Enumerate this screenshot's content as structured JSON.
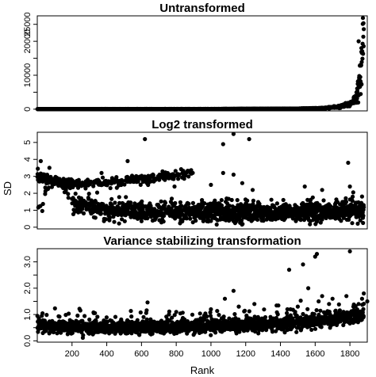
{
  "chart_data": [
    {
      "type": "scatter",
      "title": "Untransformed",
      "xlim": [
        0,
        1900
      ],
      "ylim": [
        -500,
        27500
      ],
      "yticks": [
        0,
        5000,
        10000,
        15000,
        20000,
        25000
      ],
      "ytick_labels": [
        "0",
        "",
        "10000",
        "",
        "20000",
        "25000"
      ],
      "ylabel": "",
      "xlabel": "",
      "n_points": 1880,
      "trend": [
        [
          0,
          40
        ],
        [
          1000,
          60
        ],
        [
          1500,
          140
        ],
        [
          1650,
          300
        ],
        [
          1750,
          800
        ],
        [
          1800,
          1500
        ],
        [
          1830,
          3000
        ],
        [
          1850,
          6000
        ],
        [
          1862,
          10000
        ],
        [
          1870,
          15000
        ],
        [
          1878,
          25000
        ]
      ],
      "outliers": [
        [
          1850,
          20000
        ],
        [
          1860,
          13000
        ],
        [
          1866,
          18000
        ]
      ]
    },
    {
      "type": "scatter",
      "title": "Log2 transformed",
      "xlim": [
        0,
        1900
      ],
      "ylim": [
        -0.1,
        5.6
      ],
      "yticks": [
        0,
        1,
        2,
        3,
        4,
        5
      ],
      "ytick_labels": [
        "0",
        "1",
        "2",
        "3",
        "4",
        "5"
      ],
      "ylabel": "SD",
      "xlabel": "",
      "n_points": 1880,
      "upper_band": [
        [
          0,
          3.0
        ],
        [
          150,
          2.6
        ],
        [
          400,
          2.6
        ],
        [
          700,
          2.9
        ],
        [
          900,
          3.3
        ]
      ],
      "lower_band": [
        [
          200,
          1.4
        ],
        [
          400,
          1.0
        ],
        [
          600,
          0.9
        ],
        [
          1000,
          0.9
        ],
        [
          1500,
          0.9
        ],
        [
          1880,
          1.0
        ]
      ],
      "outliers": [
        [
          20,
          3.9
        ],
        [
          70,
          3.5
        ],
        [
          370,
          3.2
        ],
        [
          520,
          3.9
        ],
        [
          620,
          5.2
        ],
        [
          1070,
          4.9
        ],
        [
          1130,
          5.5
        ],
        [
          1220,
          5.2
        ],
        [
          1130,
          3.1
        ],
        [
          1070,
          3.2
        ],
        [
          790,
          2.4
        ],
        [
          1240,
          2.2
        ],
        [
          1790,
          3.8
        ],
        [
          1800,
          2.4
        ],
        [
          1540,
          2.4
        ],
        [
          1640,
          2.2
        ],
        [
          1000,
          2.5
        ],
        [
          1180,
          2.6
        ]
      ]
    },
    {
      "type": "scatter",
      "title": "Variance stabilizing transformation",
      "xlim": [
        0,
        1900
      ],
      "ylim": [
        -0.05,
        3.5
      ],
      "yticks": [
        0.0,
        1.0,
        2.0,
        3.0
      ],
      "minor_yticks": [
        0.5,
        1.5,
        2.5
      ],
      "ytick_labels": [
        "0.0",
        "1.0",
        "2.0",
        "3.0"
      ],
      "ylabel": "",
      "xlabel": "Rank",
      "xticks": [
        200,
        400,
        600,
        800,
        1000,
        1200,
        1400,
        1600,
        1800
      ],
      "xtick_labels": [
        "200",
        "400",
        "600",
        "800",
        "1000",
        "1200",
        "1400",
        "1600",
        "1800"
      ],
      "n_points": 1880,
      "center_trend": [
        [
          0,
          0.55
        ],
        [
          500,
          0.5
        ],
        [
          1000,
          0.55
        ],
        [
          1400,
          0.65
        ],
        [
          1700,
          0.8
        ],
        [
          1880,
          1.0
        ]
      ],
      "outliers": [
        [
          1130,
          1.9
        ],
        [
          1080,
          1.6
        ],
        [
          1450,
          2.7
        ],
        [
          1530,
          2.9
        ],
        [
          1600,
          3.2
        ],
        [
          1610,
          3.3
        ],
        [
          1800,
          3.4
        ],
        [
          1560,
          2.0
        ],
        [
          1640,
          1.7
        ],
        [
          1700,
          1.6
        ],
        [
          1850,
          1.4
        ],
        [
          1870,
          1.6
        ],
        [
          1780,
          1.7
        ],
        [
          1900,
          1.5
        ],
        [
          1620,
          1.5
        ],
        [
          1820,
          1.3
        ],
        [
          1440,
          1.2
        ],
        [
          1250,
          1.4
        ],
        [
          1000,
          1.2
        ],
        [
          800,
          1.1
        ],
        [
          1160,
          1.3
        ],
        [
          1680,
          1.4
        ],
        [
          1500,
          1.3
        ],
        [
          1880,
          1.8
        ]
      ]
    }
  ]
}
